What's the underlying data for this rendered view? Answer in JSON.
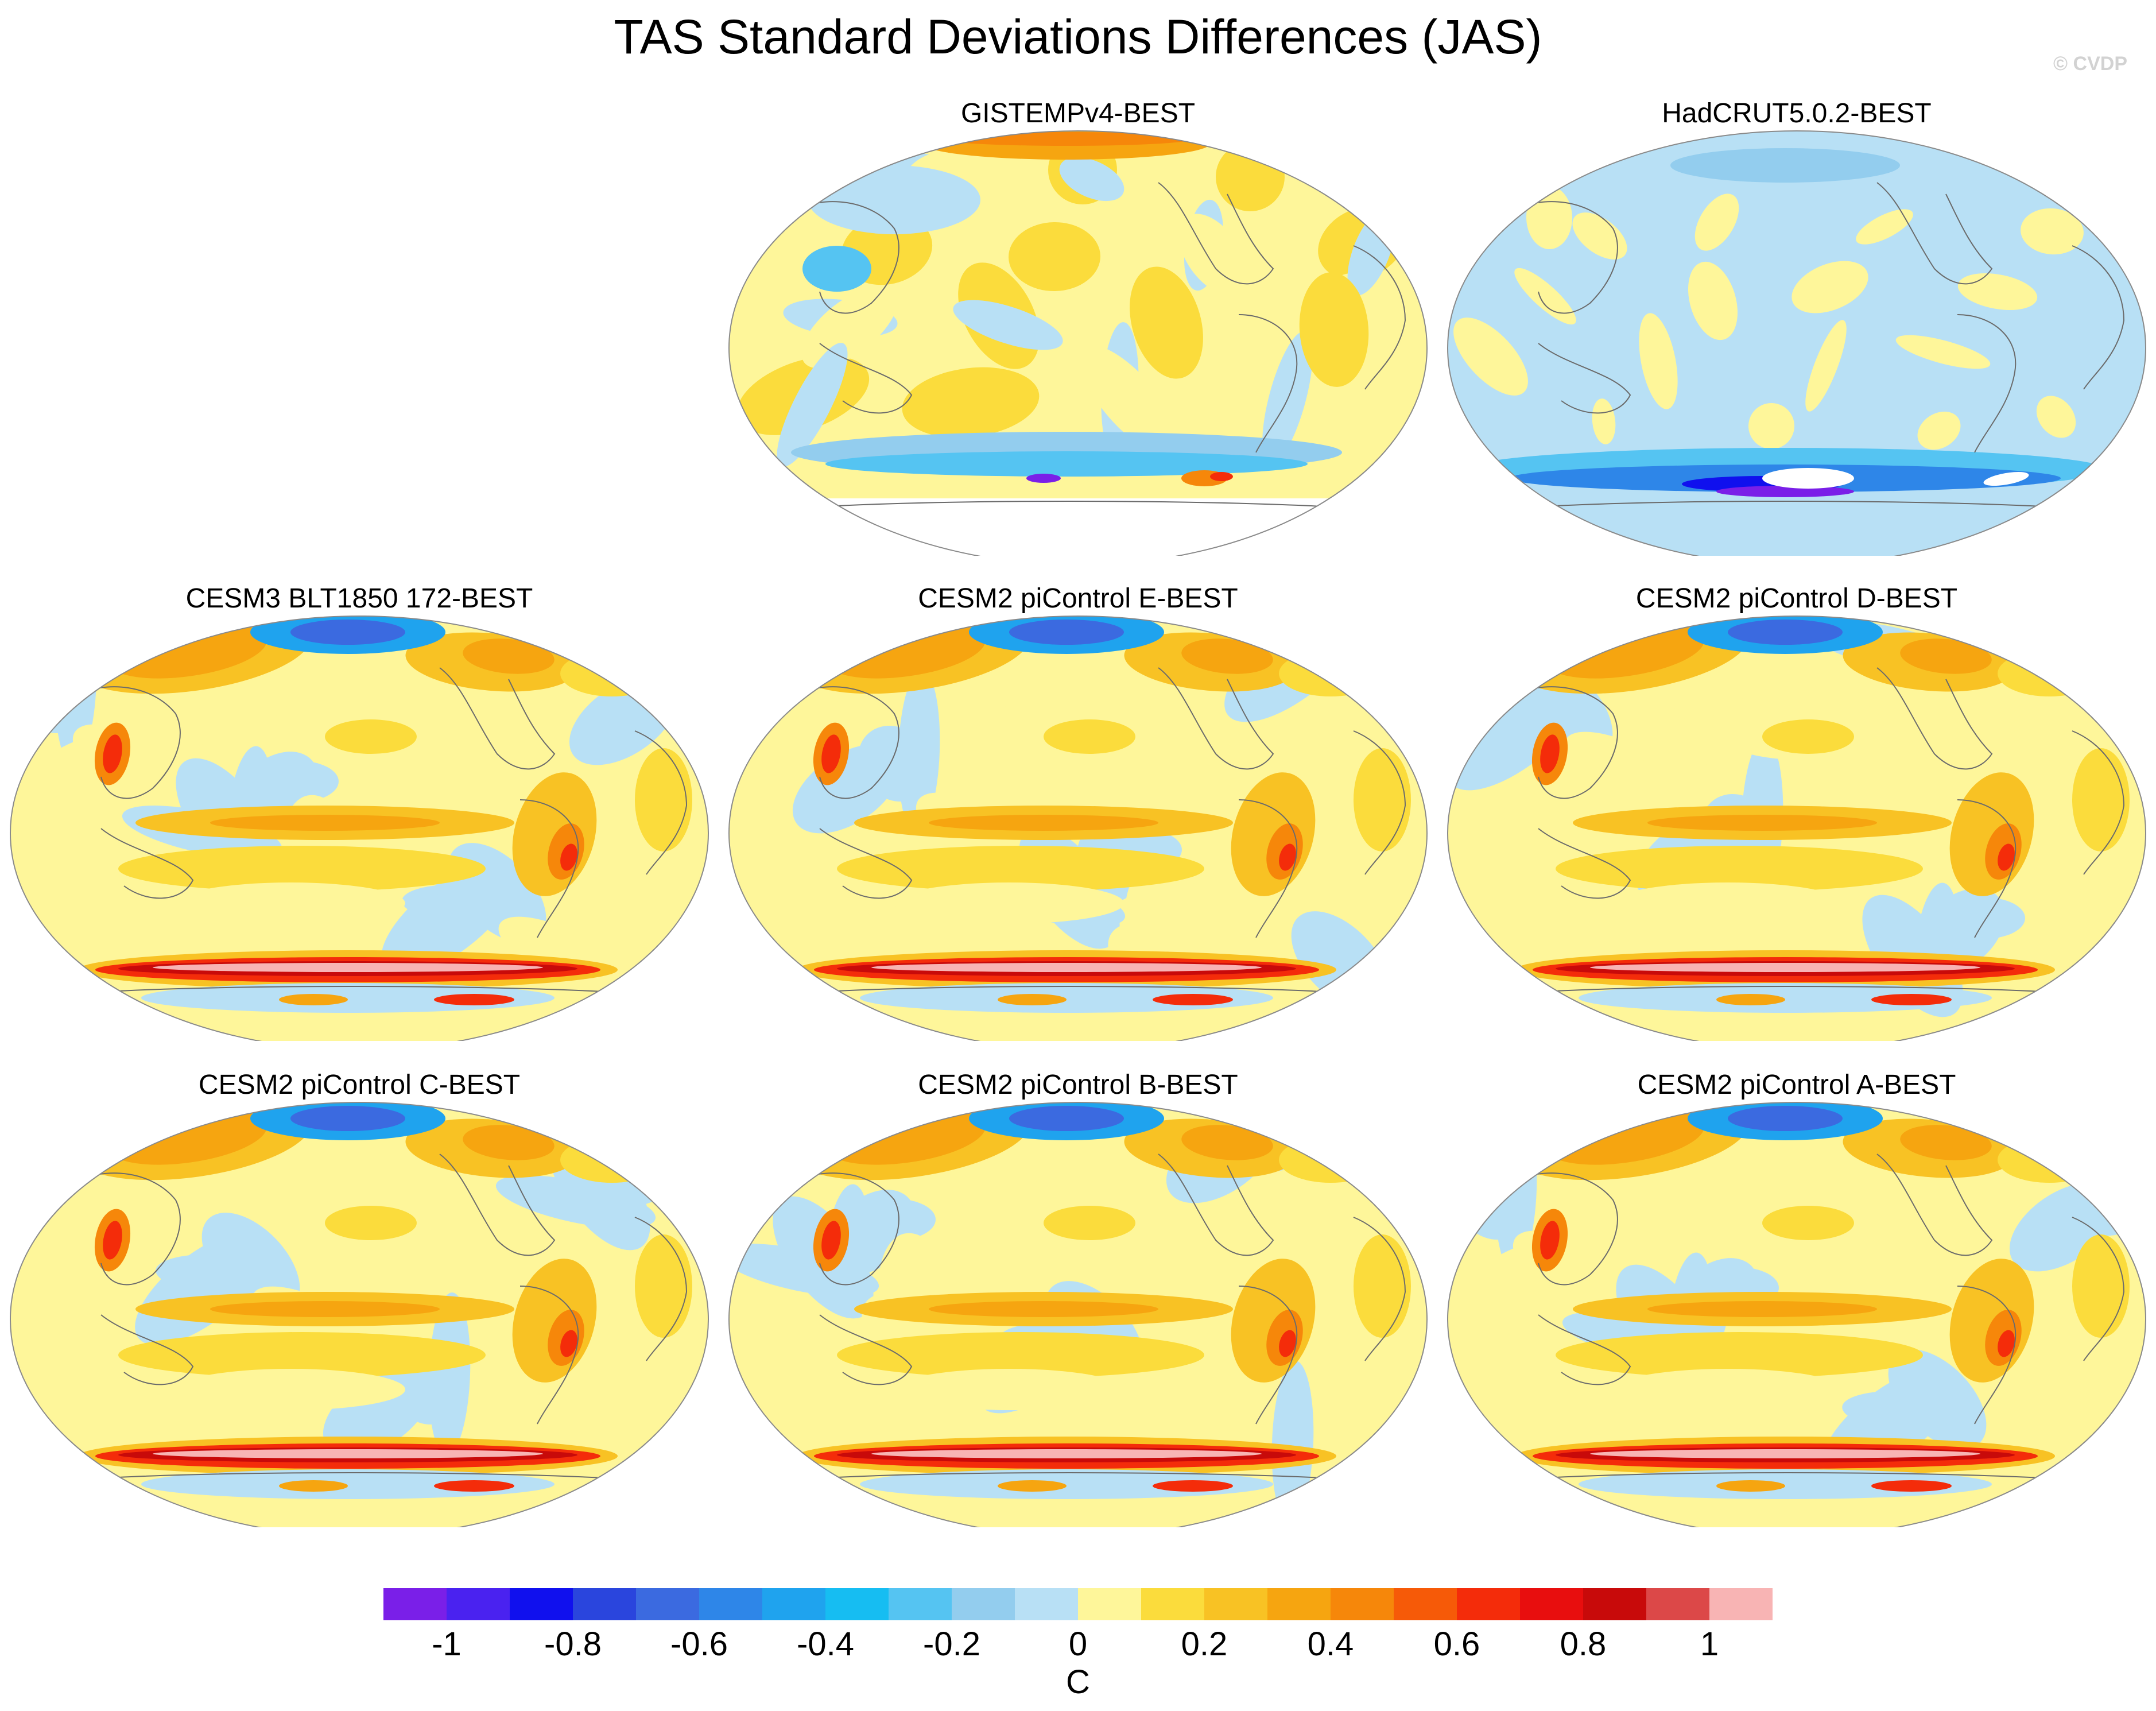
{
  "title": "TAS Standard Deviations Differences (JAS)",
  "watermark": "© CVDP",
  "panels": [
    {
      "title": "GISTEMPv4-BEST",
      "style": "gistemp"
    },
    {
      "title": "HadCRUT5.0.2-BEST",
      "style": "hadcrut"
    },
    {
      "title": "CESM3 BLT1850 172-BEST",
      "style": "model"
    },
    {
      "title": "CESM2 piControl E-BEST",
      "style": "model"
    },
    {
      "title": "CESM2 piControl D-BEST",
      "style": "model"
    },
    {
      "title": "CESM2 piControl C-BEST",
      "style": "model"
    },
    {
      "title": "CESM2 piControl B-BEST",
      "style": "model"
    },
    {
      "title": "CESM2 piControl A-BEST",
      "style": "model"
    }
  ],
  "colorbar": {
    "unit": "C",
    "colors": [
      "#7a1fe8",
      "#4a22f0",
      "#1010ee",
      "#2a45dd",
      "#3b6ae0",
      "#2e86e8",
      "#1fa3ee",
      "#16bdf2",
      "#55c4f2",
      "#93cdee",
      "#b8e0f5",
      "#fef69a",
      "#fbdc3c",
      "#f8c224",
      "#f6a510",
      "#f6870a",
      "#f65a08",
      "#f42c0a",
      "#e80e0e",
      "#c80a0a",
      "#dc4848",
      "#f8b4b4"
    ],
    "labels": [
      "-1",
      "-0.8",
      "-0.6",
      "-0.4",
      "-0.2",
      "0",
      "0.2",
      "0.4",
      "0.6",
      "0.8",
      "1"
    ]
  }
}
